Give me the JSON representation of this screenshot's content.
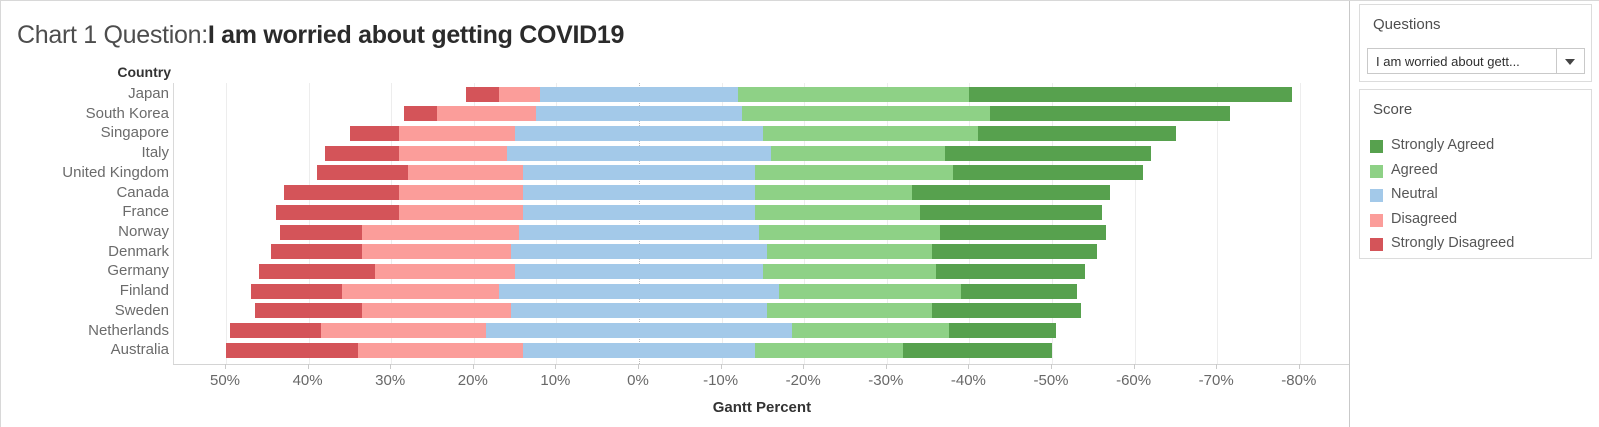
{
  "title": {
    "prefix": "Chart 1 Question:",
    "question": "I am worried about getting COVID19"
  },
  "sidebar": {
    "questions_panel": {
      "title": "Questions",
      "dropdown_value": "I am worried about gett...",
      "dropdown_arrow_icon": "caret-down"
    },
    "score_panel": {
      "title": "Score",
      "legend": [
        {
          "label": "Strongly Agreed",
          "color": "#57a14e"
        },
        {
          "label": "Agreed",
          "color": "#8ed186"
        },
        {
          "label": "Neutral",
          "color": "#a3c9e9"
        },
        {
          "label": "Disagreed",
          "color": "#fb9d9a"
        },
        {
          "label": "Strongly Disagreed",
          "color": "#d45459"
        }
      ]
    }
  },
  "chart_data": {
    "type": "bar",
    "subtype": "diverging-stacked-likert-gantt",
    "row_label_header": "Country",
    "xlabel": "Gantt Percent",
    "x_tick_values": [
      50,
      40,
      30,
      20,
      10,
      0,
      -10,
      -20,
      -30,
      -40,
      -50,
      -60,
      -70,
      -80
    ],
    "x_tick_labels": [
      "50%",
      "40%",
      "30%",
      "20%",
      "10%",
      "0%",
      "-10%",
      "-20%",
      "-30%",
      "-40%",
      "-50%",
      "-60%",
      "-70%",
      "-80%"
    ],
    "axis_note": "Axis reversed: disagreement plotted to the left (positive), agreement to the right (negative). Each bar starts at SD+D+N/2 so Neutral is centered on 0.",
    "grid": true,
    "categories": [
      "Japan",
      "South Korea",
      "Singapore",
      "Italy",
      "United Kingdom",
      "Canada",
      "France",
      "Norway",
      "Denmark",
      "Germany",
      "Finland",
      "Sweden",
      "Netherlands",
      "Australia"
    ],
    "series": [
      {
        "name": "Strongly Disagreed",
        "color": "#d45459",
        "values": [
          4,
          4,
          6,
          9,
          11,
          14,
          15,
          10,
          11,
          14,
          11,
          13,
          11,
          16
        ]
      },
      {
        "name": "Disagreed",
        "color": "#fb9d9a",
        "values": [
          5,
          12,
          14,
          13,
          14,
          15,
          15,
          19,
          18,
          17,
          19,
          18,
          20,
          20
        ]
      },
      {
        "name": "Neutral",
        "color": "#a3c9e9",
        "values": [
          24,
          25,
          30,
          32,
          28,
          28,
          28,
          29,
          31,
          30,
          34,
          31,
          37,
          28
        ]
      },
      {
        "name": "Agreed",
        "color": "#8ed186",
        "values": [
          28,
          30,
          26,
          21,
          24,
          19,
          20,
          22,
          20,
          21,
          22,
          20,
          19,
          18
        ]
      },
      {
        "name": "Strongly Agreed",
        "color": "#57a14e",
        "values": [
          39,
          29,
          24,
          25,
          23,
          24,
          22,
          20,
          20,
          18,
          14,
          18,
          13,
          18
        ]
      }
    ]
  }
}
